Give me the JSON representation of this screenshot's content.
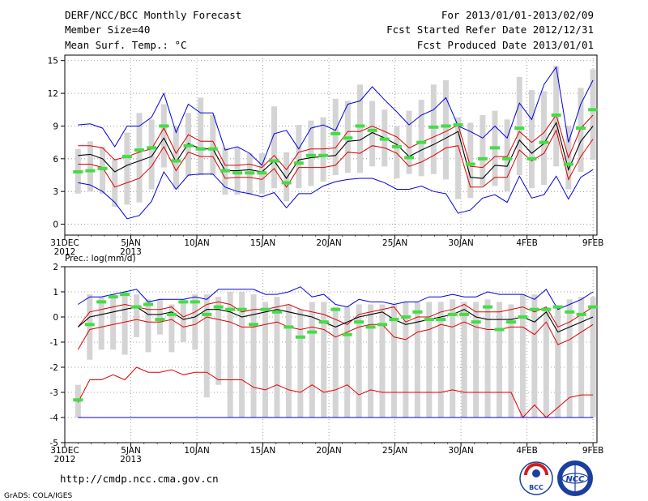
{
  "header": {
    "title": "DERF/NCC/BCC Monthly Forecast",
    "member_size": "Member Size=40",
    "panel1_label": "Mean Surf. Temp.: °C",
    "period": "For 2013/01/01-2013/02/09",
    "started": "Fcst Started Refer Date 2012/12/31",
    "produced": "Fcst Produced Date 2013/01/01"
  },
  "x_axis": {
    "ticks": [
      {
        "day": 0,
        "label": "31DEC",
        "sub": "2012"
      },
      {
        "day": 5,
        "label": "5JAN",
        "sub": "2013"
      },
      {
        "day": 10,
        "label": "10JAN",
        "sub": ""
      },
      {
        "day": 15,
        "label": "15JAN",
        "sub": ""
      },
      {
        "day": 20,
        "label": "20JAN",
        "sub": ""
      },
      {
        "day": 25,
        "label": "25JAN",
        "sub": ""
      },
      {
        "day": 30,
        "label": "30JAN",
        "sub": ""
      },
      {
        "day": 35,
        "label": "4FEB",
        "sub": ""
      },
      {
        "day": 40,
        "label": "9FEB",
        "sub": ""
      }
    ]
  },
  "footer": {
    "url": "http://cmdp.ncc.cma.gov.cn",
    "credit": "GrADS: COLA/IGES",
    "logo1_text": "BCC",
    "logo2_text": "NCC"
  },
  "colors": {
    "envelope": "#0000dd",
    "spread": "#dd0000",
    "mean": "#000000",
    "observed": "#44dd44",
    "box": "#d4d4d4"
  },
  "chart_data": [
    {
      "type": "line",
      "title": "Mean Surf. Temp.: °C",
      "ylim": [
        -1,
        15.5
      ],
      "yticks": [
        0,
        3,
        6,
        9,
        12,
        15
      ],
      "x_start_day": 1,
      "series": [
        {
          "name": "max",
          "values": [
            9.1,
            9.2,
            8.8,
            7.1,
            9.0,
            9.0,
            9.8,
            12.0,
            8.4,
            11.0,
            10.2,
            10.2,
            6.8,
            7.1,
            6.5,
            5.4,
            8.3,
            8.6,
            6.9,
            8.8,
            9.1,
            8.6,
            11.0,
            11.3,
            12.6,
            11.4,
            10.3,
            9.1,
            10.0,
            10.5,
            11.6,
            9.0,
            8.5,
            7.9,
            9.0,
            7.9,
            11.1,
            9.6,
            12.8,
            14.4,
            7.5,
            11.0,
            13.2
          ]
        },
        {
          "name": "spread_upper",
          "values": [
            7.2,
            7.2,
            7.0,
            5.9,
            6.2,
            6.6,
            6.9,
            8.8,
            6.5,
            8.2,
            7.6,
            7.6,
            5.4,
            5.4,
            5.5,
            5.2,
            6.3,
            5.0,
            6.6,
            6.9,
            6.9,
            7.0,
            8.5,
            8.5,
            9.0,
            8.5,
            8.0,
            7.0,
            7.5,
            8.0,
            8.5,
            9.1,
            5.3,
            5.2,
            6.2,
            6.2,
            8.5,
            7.5,
            8.4,
            10.0,
            6.1,
            8.8,
            10.0
          ]
        },
        {
          "name": "mean",
          "values": [
            6.3,
            6.4,
            6.0,
            4.8,
            5.4,
            5.8,
            6.2,
            7.9,
            5.7,
            7.4,
            6.9,
            6.9,
            4.9,
            4.9,
            5.0,
            4.8,
            5.8,
            4.2,
            5.9,
            6.1,
            6.2,
            6.3,
            7.6,
            7.7,
            8.4,
            7.9,
            7.3,
            6.2,
            6.8,
            7.3,
            7.9,
            8.5,
            4.3,
            4.2,
            5.4,
            5.3,
            7.7,
            6.5,
            7.4,
            9.3,
            5.0,
            7.6,
            9.0
          ]
        },
        {
          "name": "spread_lower",
          "values": [
            5.5,
            5.5,
            5.2,
            3.4,
            3.8,
            4.2,
            5.3,
            7.1,
            4.9,
            6.6,
            6.2,
            6.2,
            4.2,
            4.3,
            4.3,
            4.1,
            5.1,
            3.4,
            5.2,
            5.2,
            5.2,
            5.4,
            6.6,
            6.5,
            7.2,
            7.0,
            6.5,
            5.3,
            5.7,
            6.3,
            7.0,
            7.2,
            3.4,
            3.4,
            4.3,
            4.3,
            6.8,
            5.8,
            6.5,
            8.6,
            4.1,
            6.2,
            7.8
          ]
        },
        {
          "name": "min",
          "values": [
            3.8,
            3.6,
            3.0,
            2.0,
            0.5,
            0.8,
            2.1,
            4.8,
            3.2,
            4.5,
            4.6,
            4.6,
            3.4,
            3.0,
            2.8,
            2.5,
            2.9,
            1.5,
            2.8,
            2.8,
            3.5,
            3.9,
            4.1,
            4.2,
            4.2,
            3.8,
            3.2,
            3.2,
            3.5,
            3.0,
            2.8,
            1.0,
            1.3,
            2.4,
            2.7,
            2.0,
            4.4,
            2.4,
            2.7,
            4.4,
            2.3,
            4.3,
            5.0
          ]
        },
        {
          "name": "observed",
          "values": [
            4.8,
            4.9,
            5.1,
            null,
            6.2,
            6.8,
            7.0,
            9.0,
            5.8,
            7.2,
            6.9,
            6.9,
            4.9,
            4.7,
            4.7,
            4.7,
            5.8,
            3.8,
            5.6,
            6.3,
            6.3,
            8.3,
            7.9,
            9.0,
            8.6,
            7.8,
            7.1,
            6.1,
            7.5,
            8.9,
            9.0,
            9.1,
            5.5,
            6.0,
            7.0,
            6.0,
            8.8,
            6.0,
            7.5,
            10.0,
            5.5,
            8.8,
            10.5
          ]
        }
      ],
      "boxes": [
        [
          2.8,
          6.9
        ],
        [
          3.0,
          7.6
        ],
        [
          2.8,
          7.1
        ],
        [
          1.6,
          6.0
        ],
        [
          1.8,
          8.4
        ],
        [
          2.0,
          10.2
        ],
        [
          3.2,
          9.6
        ],
        [
          5.2,
          11.0
        ],
        [
          3.2,
          9.0
        ],
        [
          4.4,
          10.2
        ],
        [
          4.5,
          11.6
        ],
        [
          4.5,
          10.0
        ],
        [
          2.7,
          7.0
        ],
        [
          2.7,
          7.0
        ],
        [
          2.7,
          6.5
        ],
        [
          2.8,
          6.5
        ],
        [
          3.3,
          10.8
        ],
        [
          2.1,
          6.6
        ],
        [
          3.3,
          9.1
        ],
        [
          3.5,
          9.5
        ],
        [
          3.9,
          9.8
        ],
        [
          4.5,
          11.5
        ],
        [
          4.7,
          11.3
        ],
        [
          4.7,
          12.8
        ],
        [
          5.3,
          11.3
        ],
        [
          5.3,
          10.5
        ],
        [
          4.2,
          9.0
        ],
        [
          4.6,
          10.4
        ],
        [
          4.4,
          11.4
        ],
        [
          4.6,
          12.8
        ],
        [
          4.1,
          13.2
        ],
        [
          2.3,
          9.8
        ],
        [
          2.4,
          9.3
        ],
        [
          3.5,
          10.0
        ],
        [
          3.5,
          10.4
        ],
        [
          3.0,
          9.6
        ],
        [
          4.5,
          13.5
        ],
        [
          3.3,
          12.3
        ],
        [
          3.6,
          12.2
        ],
        [
          5.3,
          14.5
        ],
        [
          3.2,
          9.0
        ],
        [
          4.8,
          12.5
        ],
        [
          5.9,
          14.2
        ]
      ]
    },
    {
      "type": "line",
      "title": "Prec.: log(mm/d)",
      "ylim": [
        -5,
        2
      ],
      "yticks": [
        -5,
        -4,
        -3,
        -2,
        -1,
        0,
        1,
        2
      ],
      "x_start_day": 1,
      "series": [
        {
          "name": "max",
          "values": [
            0.5,
            0.8,
            0.8,
            0.9,
            1.0,
            1.1,
            0.6,
            0.7,
            0.7,
            0.7,
            0.8,
            0.7,
            1.1,
            1.1,
            1.1,
            1.1,
            0.9,
            0.9,
            1.0,
            1.2,
            0.8,
            0.9,
            0.5,
            0.4,
            0.7,
            0.6,
            0.6,
            0.5,
            0.6,
            0.6,
            0.8,
            0.8,
            0.9,
            0.8,
            0.8,
            1.0,
            0.9,
            0.9,
            0.9,
            0.7,
            1.1,
            0.3,
            0.5,
            0.7,
            1.0
          ]
        },
        {
          "name": "spread_upper",
          "values": [
            -0.4,
            0.2,
            0.3,
            0.4,
            0.5,
            0.4,
            0.3,
            0.3,
            0.4,
            0.0,
            0.2,
            0.5,
            0.6,
            0.5,
            0.2,
            0.3,
            0.3,
            0.4,
            0.5,
            0.3,
            0.2,
            0.1,
            -0.1,
            -0.3,
            0.1,
            0.2,
            0.3,
            0.4,
            -0.2,
            0.0,
            0.0,
            0.2,
            0.3,
            0.5,
            0.2,
            0.2,
            0.2,
            0.3,
            0.4,
            0.2,
            0.4,
            -0.4,
            -0.2,
            0.1,
            0.4
          ]
        },
        {
          "name": "mean",
          "values": [
            -0.4,
            0.0,
            0.1,
            0.2,
            0.3,
            0.4,
            0.1,
            0.1,
            0.2,
            -0.1,
            0.0,
            0.3,
            0.3,
            0.2,
            0.0,
            0.1,
            0.2,
            0.3,
            0.2,
            0.1,
            0.0,
            -0.2,
            -0.4,
            -0.2,
            0.0,
            0.1,
            0.2,
            -0.1,
            -0.3,
            -0.2,
            -0.1,
            0.0,
            0.1,
            0.3,
            0.0,
            -0.1,
            -0.1,
            -0.1,
            0.0,
            -0.2,
            0.2,
            -0.6,
            -0.4,
            -0.2,
            0.0
          ]
        },
        {
          "name": "spread_lower",
          "values": [
            -1.3,
            -0.5,
            -0.4,
            -0.3,
            -0.2,
            -0.1,
            -0.2,
            -0.2,
            -0.1,
            -0.4,
            -0.3,
            0.0,
            -0.1,
            -0.2,
            -0.4,
            -0.4,
            -0.3,
            -0.2,
            -0.4,
            -0.5,
            -0.4,
            -0.5,
            -0.8,
            -0.6,
            -0.4,
            -0.3,
            -0.3,
            -0.8,
            -0.9,
            -0.6,
            -0.5,
            -0.3,
            -0.4,
            -0.2,
            -0.4,
            -0.5,
            -0.5,
            -0.4,
            -0.4,
            -0.7,
            -0.2,
            -1.1,
            -0.9,
            -0.6,
            -0.3
          ]
        },
        {
          "name": "min_spread",
          "values": [
            -3.4,
            -2.5,
            -2.5,
            -2.3,
            -2.5,
            -2.0,
            -2.2,
            -2.2,
            -2.1,
            -2.3,
            -2.2,
            -2.2,
            -2.5,
            -2.5,
            -2.5,
            -2.8,
            -2.9,
            -2.7,
            -2.9,
            -3.0,
            -2.7,
            -3.0,
            -2.9,
            -2.7,
            -3.1,
            -2.9,
            -3.0,
            -3.0,
            -3.0,
            -3.0,
            -3.0,
            -3.0,
            -2.9,
            -3.0,
            -3.0,
            -3.0,
            -3.0,
            -3.0,
            -4.0,
            -3.5,
            -4.0,
            -3.6,
            -3.2,
            -3.1,
            -3.1
          ]
        },
        {
          "name": "observed",
          "values": [
            -3.3,
            -0.3,
            0.6,
            0.8,
            0.9,
            0.4,
            0.5,
            -0.1,
            0.1,
            0.6,
            0.6,
            0.1,
            0.4,
            0.3,
            0.3,
            -0.3,
            0.3,
            0.2,
            -0.4,
            -0.8,
            -0.6,
            -0.2,
            0.3,
            -0.7,
            -0.2,
            -0.4,
            -0.3,
            -0.1,
            0.0,
            0.2,
            -0.1,
            -0.1,
            0.1,
            0.1,
            -0.2,
            0.4,
            -0.5,
            -0.2,
            0.0,
            0.3,
            0.3,
            0.4,
            0.2,
            0.1,
            0.4
          ]
        }
      ],
      "boxes": [
        [
          -4.0,
          -2.7
        ],
        [
          -1.7,
          0.9
        ],
        [
          -1.3,
          0.8
        ],
        [
          -1.3,
          0.9
        ],
        [
          -1.5,
          1.0
        ],
        [
          -0.8,
          0.9
        ],
        [
          -1.4,
          0.7
        ],
        [
          -0.7,
          0.7
        ],
        [
          -1.4,
          0.5
        ],
        [
          -1.0,
          0.7
        ],
        [
          -1.3,
          0.9
        ],
        [
          -3.2,
          0.9
        ],
        [
          -2.7,
          0.8
        ],
        [
          -4.0,
          1.0
        ],
        [
          -4.0,
          1.0
        ],
        [
          -4.0,
          0.9
        ],
        [
          -4.0,
          0.6
        ],
        [
          -4.0,
          0.8
        ],
        [
          -4.0,
          0.5
        ],
        [
          -4.0,
          0.3
        ],
        [
          -4.0,
          0.6
        ],
        [
          -4.0,
          0.6
        ],
        [
          -4.0,
          0.4
        ],
        [
          -4.0,
          0.4
        ],
        [
          -4.0,
          0.5
        ],
        [
          -4.0,
          0.5
        ],
        [
          -4.0,
          0.5
        ],
        [
          -4.0,
          0.5
        ],
        [
          -4.0,
          0.6
        ],
        [
          -4.0,
          0.6
        ],
        [
          -4.0,
          0.6
        ],
        [
          -4.0,
          0.6
        ],
        [
          -4.0,
          0.7
        ],
        [
          -4.0,
          0.6
        ],
        [
          -4.0,
          0.6
        ],
        [
          -4.0,
          0.7
        ],
        [
          -4.0,
          0.6
        ],
        [
          -4.0,
          0.5
        ],
        [
          -4.0,
          0.9
        ],
        [
          -4.0,
          0.9
        ],
        [
          -4.0,
          0.4
        ],
        [
          -4.0,
          0.4
        ],
        [
          -4.0,
          0.7
        ],
        [
          -4.0,
          0.8
        ],
        [
          -4.0,
          0.8
        ]
      ]
    }
  ]
}
